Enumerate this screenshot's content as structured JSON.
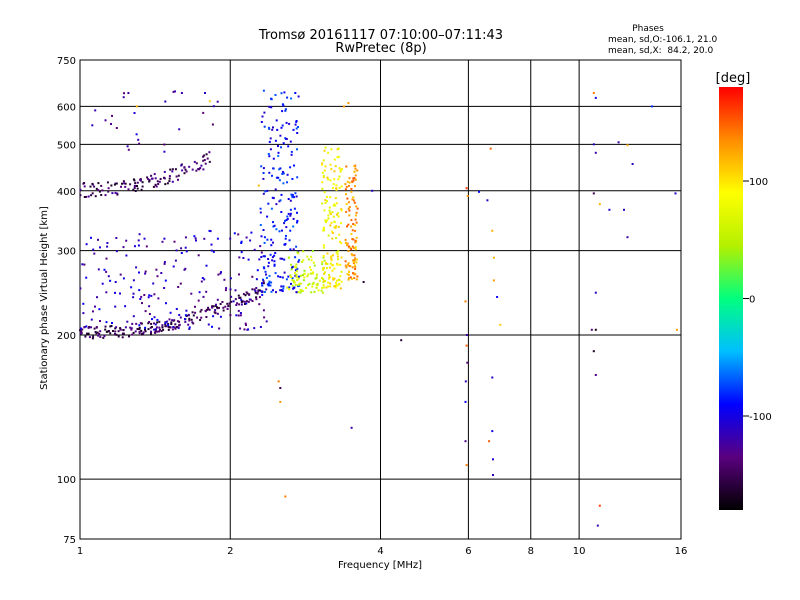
{
  "chart_data": {
    "type": "scatter",
    "title": "Tromsø 20161117 07:10:00–07:11:43",
    "subtitle": "RwPretec (8p)",
    "xlabel": "Frequency [MHz]",
    "ylabel": "Stationary phase Virtual Height [km]",
    "x_scale": "log",
    "y_scale": "log",
    "xlim": [
      1,
      16
    ],
    "ylim": [
      75,
      750
    ],
    "x_ticks": [
      1,
      2,
      4,
      6,
      8,
      10,
      16
    ],
    "y_ticks": [
      75,
      100,
      200,
      300,
      400,
      500,
      600,
      750
    ],
    "grid": true,
    "phase_stats": {
      "title": "Phases",
      "line_o": "mean, sd,O:-106.1, 21.0",
      "line_x": "mean, sd,X:  84.2, 20.0"
    },
    "colorbar": {
      "label": "[deg]",
      "range": [
        -180,
        180
      ],
      "ticks": [
        100,
        0,
        -100
      ],
      "colors": [
        "#000000",
        "#5a007f",
        "#0000ff",
        "#00bfff",
        "#00ff7f",
        "#b5f000",
        "#ffff00",
        "#ff8c00",
        "#ff0000"
      ]
    },
    "point_groups": [
      {
        "trace": "o_upper_f2",
        "f_min": 1.0,
        "f_max": 1.85,
        "h_start": 402,
        "h_end": 470,
        "phase": -145,
        "spread": 0.012,
        "n": 120
      },
      {
        "trace": "o_upper_scatter",
        "f_min": 1.05,
        "f_max": 1.9,
        "h_min": 480,
        "h_max": 650,
        "phase": -125,
        "n": 24
      },
      {
        "trace": "o_lower_f1",
        "f_min": 1.0,
        "f_max": 2.35,
        "h_start": 202,
        "h_end": 250,
        "phase": -150,
        "spread": 0.01,
        "n": 200
      },
      {
        "trace": "o_lower_diffuse",
        "f_min": 1.0,
        "f_max": 2.4,
        "h_min": 205,
        "h_max": 330,
        "phase": -115,
        "n": 220
      },
      {
        "trace": "o_cusp_column",
        "f_min": 2.3,
        "f_max": 2.75,
        "h_min": 245,
        "h_max": 650,
        "phase": -90,
        "n": 220
      },
      {
        "trace": "x_column_left",
        "f_min": 2.6,
        "f_max": 3.1,
        "h_min": 245,
        "h_max": 300,
        "phase": 60,
        "n": 90
      },
      {
        "trace": "x_column_mid",
        "f_min": 3.05,
        "f_max": 3.35,
        "h_min": 250,
        "h_max": 500,
        "phase": 90,
        "n": 150
      },
      {
        "trace": "x_column_right",
        "f_min": 3.4,
        "f_max": 3.6,
        "h_min": 260,
        "h_max": 460,
        "phase": 130,
        "n": 110
      }
    ],
    "isolated_points": [
      [
        1.25,
        640,
        -125
      ],
      [
        1.3,
        600,
        120
      ],
      [
        1.55,
        645,
        -120
      ],
      [
        1.6,
        640,
        -120
      ],
      [
        1.78,
        640,
        -110
      ],
      [
        1.82,
        615,
        110
      ],
      [
        2.5,
        160,
        140
      ],
      [
        2.52,
        145,
        130
      ],
      [
        2.52,
        155,
        -150
      ],
      [
        2.58,
        92,
        140
      ],
      [
        2.7,
        640,
        -90
      ],
      [
        2.28,
        410,
        120
      ],
      [
        3.38,
        600,
        130
      ],
      [
        3.45,
        610,
        130
      ],
      [
        3.7,
        258,
        -160
      ],
      [
        3.5,
        128,
        -120
      ],
      [
        3.85,
        400,
        -110
      ],
      [
        4.4,
        195,
        -160
      ],
      [
        5.95,
        405,
        160
      ],
      [
        5.98,
        390,
        130
      ],
      [
        5.92,
        235,
        140
      ],
      [
        5.96,
        200,
        -120
      ],
      [
        5.95,
        190,
        150
      ],
      [
        5.97,
        175,
        -140
      ],
      [
        5.93,
        160,
        -115
      ],
      [
        5.92,
        145,
        -95
      ],
      [
        5.92,
        120,
        -130
      ],
      [
        5.95,
        107,
        140
      ],
      [
        6.3,
        398,
        -90
      ],
      [
        6.55,
        382,
        -110
      ],
      [
        6.65,
        490,
        150
      ],
      [
        6.7,
        330,
        120
      ],
      [
        6.75,
        290,
        120
      ],
      [
        6.75,
        260,
        130
      ],
      [
        6.85,
        240,
        -95
      ],
      [
        6.95,
        210,
        110
      ],
      [
        6.7,
        163,
        -110
      ],
      [
        6.7,
        126,
        -95
      ],
      [
        6.6,
        120,
        150
      ],
      [
        6.72,
        110,
        -105
      ],
      [
        6.72,
        102,
        -115
      ],
      [
        10.7,
        640,
        140
      ],
      [
        10.8,
        625,
        -100
      ],
      [
        10.7,
        500,
        -110
      ],
      [
        10.8,
        480,
        -120
      ],
      [
        12.0,
        505,
        -120
      ],
      [
        12.5,
        498,
        120
      ],
      [
        12.8,
        455,
        -110
      ],
      [
        10.7,
        395,
        -150
      ],
      [
        11.0,
        375,
        120
      ],
      [
        11.5,
        365,
        -110
      ],
      [
        12.3,
        365,
        -110
      ],
      [
        12.5,
        320,
        -120
      ],
      [
        10.8,
        245,
        -110
      ],
      [
        10.6,
        205,
        -140
      ],
      [
        10.8,
        205,
        -170
      ],
      [
        10.7,
        185,
        -170
      ],
      [
        10.8,
        165,
        -130
      ],
      [
        11.0,
        88,
        160
      ],
      [
        10.9,
        80,
        -120
      ],
      [
        14.0,
        600,
        -80
      ],
      [
        15.6,
        395,
        -110
      ],
      [
        15.7,
        205,
        130
      ]
    ]
  }
}
